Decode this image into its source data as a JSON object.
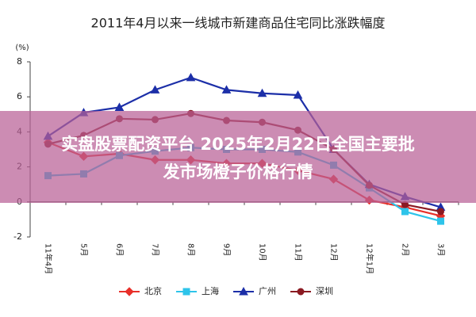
{
  "chart_data": {
    "type": "line",
    "title": "2011年4月以来一线城市新建商品住宅同比涨跌幅度",
    "y_unit": "(%)",
    "banner": [
      "实盘股票配资平台 2025年2月22日全国主要批",
      "发市场橙子价格行情"
    ],
    "categories": [
      "11年4月",
      "5月",
      "6月",
      "7月",
      "8月",
      "9月",
      "10月",
      "11月",
      "12月",
      "12年1月",
      "2月",
      "3月"
    ],
    "series": [
      {
        "name": "北京",
        "color": "#e8302a",
        "marker": "diamond",
        "values": [
          3.4,
          2.6,
          2.75,
          2.4,
          2.4,
          2.2,
          2.2,
          1.8,
          1.3,
          0.1,
          -0.3,
          -0.8
        ]
      },
      {
        "name": "上海",
        "color": "#2ec4ea",
        "marker": "square",
        "values": [
          1.5,
          1.6,
          2.65,
          2.9,
          3.1,
          3.0,
          3.0,
          2.85,
          2.1,
          0.8,
          -0.55,
          -1.1
        ]
      },
      {
        "name": "广州",
        "color": "#1c2fa8",
        "marker": "triangle",
        "values": [
          3.75,
          5.1,
          5.4,
          6.4,
          7.1,
          6.4,
          6.2,
          6.1,
          3.0,
          1.0,
          0.3,
          -0.3
        ]
      },
      {
        "name": "深圳",
        "color": "#8b1a22",
        "marker": "circle",
        "values": [
          3.3,
          3.8,
          4.75,
          4.7,
          5.05,
          4.65,
          4.55,
          4.1,
          3.0,
          0.95,
          -0.15,
          -0.55
        ]
      }
    ],
    "ylim": [
      -2,
      8
    ],
    "yticks": [
      -2,
      0,
      2,
      4,
      6,
      8
    ],
    "grid": false
  }
}
